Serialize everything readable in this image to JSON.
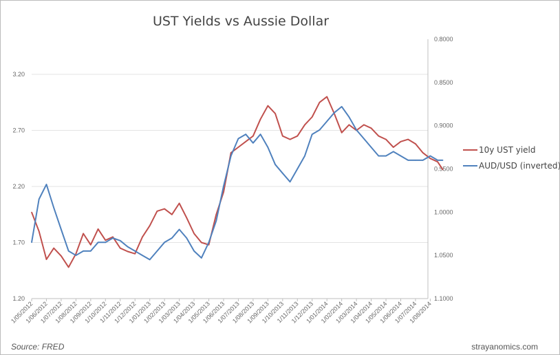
{
  "chart_data": {
    "type": "line",
    "title": "UST Yields vs Aussie Dollar",
    "y_left": {
      "ticks": [
        "1.20",
        "1.70",
        "2.20",
        "2.70",
        "3.20"
      ],
      "range": [
        1.2,
        3.513
      ]
    },
    "y_right": {
      "ticks": [
        "0.8000",
        "0.8500",
        "0.9000",
        "0.9500",
        "1.0000",
        "1.0500",
        "1.1000"
      ],
      "range": [
        0.8,
        1.1
      ],
      "inverted": true
    },
    "x_ticks": [
      "1/05/2012",
      "1/06/2012",
      "1/07/2012",
      "1/08/2012",
      "1/09/2012",
      "1/10/2012",
      "1/11/2012",
      "1/12/2012",
      "1/01/2013",
      "1/02/2013",
      "1/03/2013",
      "1/04/2013",
      "1/05/2013",
      "1/06/2013",
      "1/07/2013",
      "1/08/2013",
      "1/09/2013",
      "1/10/2013",
      "1/11/2013",
      "1/12/2013",
      "1/01/2014",
      "1/02/2014",
      "1/03/2014",
      "1/04/2014",
      "1/05/2014",
      "1/06/2014",
      "1/07/2014",
      "1/08/2014"
    ],
    "x_months": [
      0,
      0.5,
      1,
      1.5,
      2,
      2.5,
      3,
      3.5,
      4,
      4.5,
      5,
      5.5,
      6,
      6.5,
      7,
      7.5,
      8,
      8.5,
      9,
      9.5,
      10,
      10.5,
      11,
      11.5,
      12,
      12.5,
      13,
      13.5,
      14,
      14.5,
      15,
      15.5,
      16,
      16.5,
      17,
      17.5,
      18,
      18.5,
      19,
      19.5,
      20,
      20.5,
      21,
      21.5,
      22,
      22.5,
      23,
      23.5,
      24,
      24.5,
      25,
      25.5,
      26,
      26.5,
      27,
      27.5,
      27.85
    ],
    "series": [
      {
        "name": "10y UST yield",
        "axis": "left",
        "color": "#C0504D",
        "values": [
          1.97,
          1.8,
          1.55,
          1.65,
          1.58,
          1.48,
          1.6,
          1.78,
          1.68,
          1.82,
          1.72,
          1.75,
          1.65,
          1.62,
          1.6,
          1.75,
          1.85,
          1.98,
          2.0,
          1.95,
          2.05,
          1.92,
          1.78,
          1.7,
          1.68,
          1.95,
          2.15,
          2.5,
          2.55,
          2.6,
          2.65,
          2.8,
          2.92,
          2.85,
          2.65,
          2.62,
          2.65,
          2.75,
          2.82,
          2.95,
          3.0,
          2.85,
          2.68,
          2.75,
          2.7,
          2.75,
          2.72,
          2.65,
          2.62,
          2.55,
          2.6,
          2.62,
          2.58,
          2.5,
          2.45,
          2.42,
          2.35
        ]
      },
      {
        "name": "AUD/USD (inverted)",
        "axis": "right",
        "color": "#4F81BD",
        "values": [
          1.035,
          0.985,
          0.968,
          0.995,
          1.02,
          1.045,
          1.05,
          1.045,
          1.045,
          1.035,
          1.035,
          1.03,
          1.033,
          1.04,
          1.045,
          1.05,
          1.055,
          1.045,
          1.035,
          1.03,
          1.02,
          1.03,
          1.045,
          1.053,
          1.035,
          1.01,
          0.97,
          0.935,
          0.915,
          0.91,
          0.92,
          0.91,
          0.925,
          0.945,
          0.955,
          0.965,
          0.95,
          0.935,
          0.91,
          0.905,
          0.895,
          0.885,
          0.878,
          0.89,
          0.905,
          0.915,
          0.925,
          0.935,
          0.935,
          0.93,
          0.935,
          0.94,
          0.94,
          0.94,
          0.935,
          0.94,
          0.94
        ]
      }
    ],
    "legend": "right",
    "grid": true
  },
  "footer": {
    "source": "Source: FRED",
    "site": "strayanomics.com"
  }
}
